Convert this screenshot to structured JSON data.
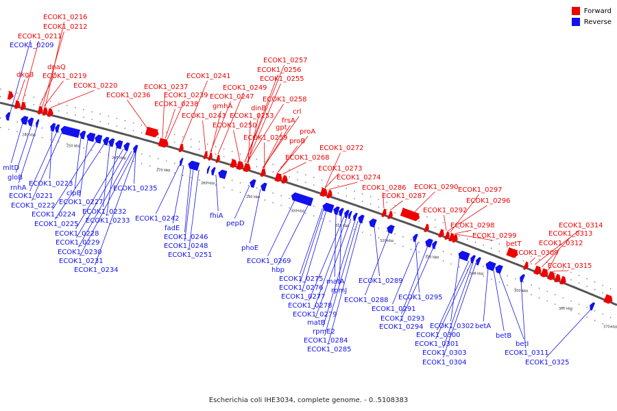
{
  "caption": "Escherichia coli IHE3034, complete genome. - 0..5108383",
  "legend": {
    "forward_label": "Forward",
    "reverse_label": "Reverse",
    "forward_color": "#ee0000",
    "reverse_color": "#1111ee"
  },
  "ticks": [
    "240 kbp",
    "250 kbp",
    "260 kbp",
    "270 kbp",
    "280 kbp",
    "290 kbp",
    "300 kbp",
    "310 kbp",
    "320 kbp",
    "330 kbp",
    "340 kbp",
    "350 kbp",
    "360 kbp",
    "370 kbp"
  ],
  "forward_labels": [
    "ECOK1_0216",
    "ECOK1_0212",
    "ECOK1_0211",
    "dkgB",
    "dnaQ",
    "ECOK1_0219",
    "ECOK1_0220",
    "ECOK1_0236",
    "ECOK1_0237",
    "ECOK1_0239",
    "ECOK1_0238",
    "ECOK1_0241",
    "ECOK1_0243",
    "ECOK1_0249",
    "ECOK1_0247",
    "gmhA",
    "ECOK1_0250",
    "ECOK1_0257",
    "ECOK1_0256",
    "ECOK1_0255",
    "ECOK1_0258",
    "dinB",
    "ECOK1_0253",
    "crl",
    "frsA",
    "gpt",
    "ECOK1_0259",
    "proA",
    "proB",
    "ECOK1_0268",
    "ECOK1_0272",
    "ECOK1_0273",
    "ECOK1_0274",
    "ECOK1_0286",
    "ECOK1_0287",
    "ECOK1_0290",
    "ECOK1_0297",
    "ECOK1_0296",
    "ECOK1_0292",
    "ECOK1_0298",
    "ECOK1_0299",
    "betT",
    "ECOK1_0309",
    "ECOK1_0314",
    "ECOK1_0313",
    "ECOK1_0312",
    "ECOK1_0315"
  ],
  "reverse_labels": [
    "ECOK1_0209",
    "mltD",
    "gloB",
    "rnhA",
    "ECOK1_0223",
    "ECOK1_0221",
    "ECOK1_0222",
    "clpB",
    "ECOK1_0227",
    "ECOK1_0224",
    "ECOK1_0225",
    "ECOK1_0232",
    "ECOK1_0233",
    "ECOK1_0228",
    "ECOK1_0229",
    "ECOK1_0230",
    "ECOK1_0231",
    "ECOK1_0234",
    "ECOK1_0235",
    "ECOK1_0242",
    "fadE",
    "ECOK1_0246",
    "ECOK1_0248",
    "ECOK1_0251",
    "fhiA",
    "pepD",
    "phoE",
    "ECOK1_0269",
    "hbp",
    "ECOK1_0275",
    "ECOK1_0276",
    "ECOK1_0277",
    "matA",
    "rpmJ",
    "ECOK1_0278",
    "ECOK1_0279",
    "matB",
    "rpmE2",
    "ECOK1_0284",
    "ECOK1_0285",
    "ECOK1_0289",
    "ECOK1_0288",
    "ECOK1_0295",
    "ECOK1_0291",
    "ECOK1_0293",
    "ECOK1_0294",
    "ECOK1_0302",
    "ECOK1_0300",
    "ECOK1_0301",
    "ECOK1_0303",
    "ECOK1_0304",
    "betA",
    "betB",
    "betI",
    "ECOK1_0311",
    "ECOK1_0325"
  ]
}
